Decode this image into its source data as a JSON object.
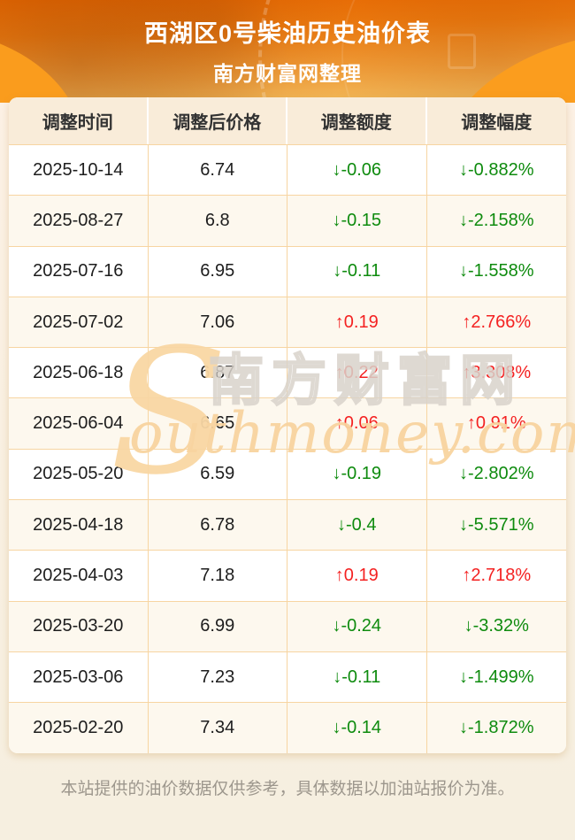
{
  "page": {
    "title_line1": "西湖区0号柴油历史油价表",
    "title_line2": "南方财富网整理",
    "footer_note": "本站提供的油价数据仅供参考，具体数据以加油站报价为准。"
  },
  "watermark": {
    "initial": "S",
    "cn": "南方财富网",
    "en": "outhmoney.com"
  },
  "table": {
    "headers": [
      "调整时间",
      "调整后价格",
      "调整额度",
      "调整幅度"
    ],
    "rows": [
      {
        "date": "2025-10-14",
        "price": "6.74",
        "change": "↓-0.06",
        "pct": "↓-0.882%",
        "dir": "down"
      },
      {
        "date": "2025-08-27",
        "price": "6.8",
        "change": "↓-0.15",
        "pct": "↓-2.158%",
        "dir": "down"
      },
      {
        "date": "2025-07-16",
        "price": "6.95",
        "change": "↓-0.11",
        "pct": "↓-1.558%",
        "dir": "down"
      },
      {
        "date": "2025-07-02",
        "price": "7.06",
        "change": "↑0.19",
        "pct": "↑2.766%",
        "dir": "up"
      },
      {
        "date": "2025-06-18",
        "price": "6.87",
        "change": "↑0.22",
        "pct": "↑3.308%",
        "dir": "up"
      },
      {
        "date": "2025-06-04",
        "price": "6.65",
        "change": "↑0.06",
        "pct": "↑0.91%",
        "dir": "up"
      },
      {
        "date": "2025-05-20",
        "price": "6.59",
        "change": "↓-0.19",
        "pct": "↓-2.802%",
        "dir": "down"
      },
      {
        "date": "2025-04-18",
        "price": "6.78",
        "change": "↓-0.4",
        "pct": "↓-5.571%",
        "dir": "down"
      },
      {
        "date": "2025-04-03",
        "price": "7.18",
        "change": "↑0.19",
        "pct": "↑2.718%",
        "dir": "up"
      },
      {
        "date": "2025-03-20",
        "price": "6.99",
        "change": "↓-0.24",
        "pct": "↓-3.32%",
        "dir": "down"
      },
      {
        "date": "2025-03-06",
        "price": "7.23",
        "change": "↓-0.11",
        "pct": "↓-1.499%",
        "dir": "down"
      },
      {
        "date": "2025-02-20",
        "price": "7.34",
        "change": "↓-0.14",
        "pct": "↓-1.872%",
        "dir": "down"
      }
    ]
  },
  "colors": {
    "banner_orange_top": "#ec6b02",
    "banner_orange_bottom": "#f9c868",
    "header_row_bg": "#f9ecd9",
    "alt_row_bg": "#fdf8ee",
    "grid_line": "#f7d5a2",
    "up_red": "#f42222",
    "down_green": "#0e8b0e",
    "footer_text": "#9d978d"
  },
  "chart_data": {
    "type": "table",
    "title": "西湖区0号柴油历史油价表",
    "subtitle": "南方财富网整理",
    "columns": [
      "调整时间",
      "调整后价格",
      "调整额度",
      "调整幅度"
    ],
    "rows": [
      [
        "2025-10-14",
        6.74,
        -0.06,
        "-0.882%"
      ],
      [
        "2025-08-27",
        6.8,
        -0.15,
        "-2.158%"
      ],
      [
        "2025-07-16",
        6.95,
        -0.11,
        "-1.558%"
      ],
      [
        "2025-07-02",
        7.06,
        0.19,
        "+2.766%"
      ],
      [
        "2025-06-18",
        6.87,
        0.22,
        "+3.308%"
      ],
      [
        "2025-06-04",
        6.65,
        0.06,
        "+0.91%"
      ],
      [
        "2025-05-20",
        6.59,
        -0.19,
        "-2.802%"
      ],
      [
        "2025-04-18",
        6.78,
        -0.4,
        "-5.571%"
      ],
      [
        "2025-04-03",
        7.18,
        0.19,
        "+2.718%"
      ],
      [
        "2025-03-20",
        6.99,
        -0.24,
        "-3.32%"
      ],
      [
        "2025-03-06",
        7.23,
        -0.11,
        "-1.499%"
      ],
      [
        "2025-02-20",
        7.34,
        -0.14,
        "-1.872%"
      ]
    ],
    "notes": "green = price decrease, red = price increase; footer disclaimer shown below table"
  }
}
